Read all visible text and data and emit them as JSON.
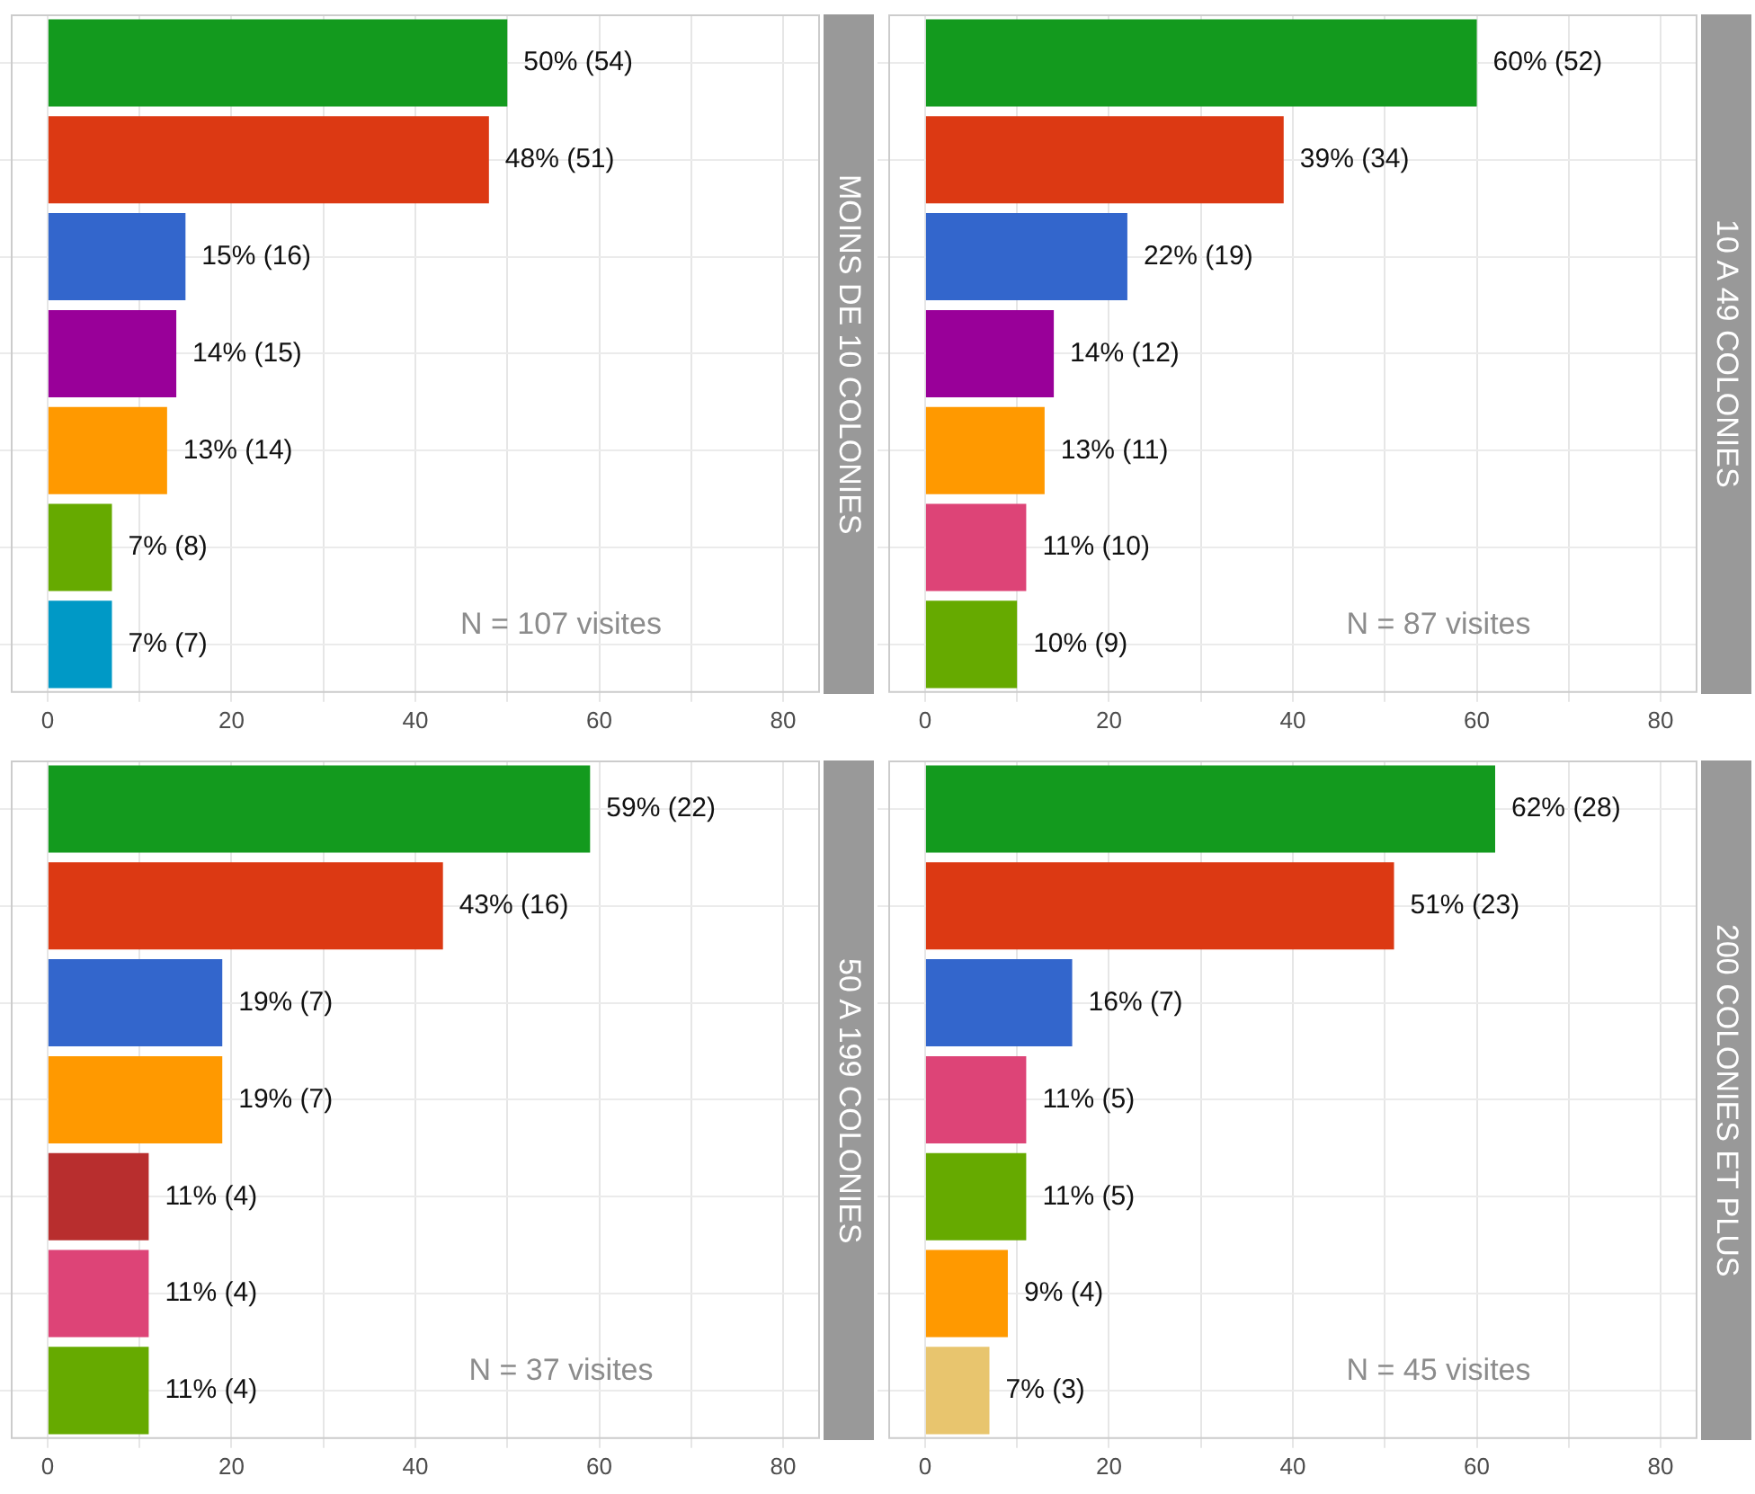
{
  "chart_data": [
    {
      "type": "bar",
      "orientation": "horizontal",
      "title": "MOINS DE 10 COLONIES",
      "categories": [
        null,
        null,
        null,
        null,
        null,
        null,
        null
      ],
      "values": [
        50,
        48,
        15,
        14,
        13,
        7,
        7
      ],
      "colors": [
        "#139a1e",
        "#dc3913",
        "#3366cc",
        "#990099",
        "#ff9900",
        "#66aa00",
        "#0099c6"
      ],
      "value_labels": [
        "50% (54)",
        "48% (51)",
        "15% (16)",
        "14% (15)",
        "13% (14)",
        "7% (8)",
        "7% (7)"
      ],
      "annotations": [
        "N = 107 visites"
      ],
      "xlim": [
        -4,
        84
      ],
      "xticks": [
        0,
        {
          "value": 10,
          "label": null
        },
        20,
        {
          "value": 30,
          "label": null
        },
        40,
        {
          "value": 50,
          "label": null
        },
        60,
        {
          "value": 70,
          "label": null
        },
        80
      ],
      "grid": true,
      "tick_labels": "x"
    },
    {
      "type": "bar",
      "orientation": "horizontal",
      "title": "10 A 49 COLONIES",
      "categories": [
        null,
        null,
        null,
        null,
        null,
        null,
        null
      ],
      "values": [
        60,
        39,
        22,
        14,
        13,
        11,
        10
      ],
      "colors": [
        "#139a1e",
        "#dc3913",
        "#3366cc",
        "#990099",
        "#ff9900",
        "#dd4477",
        "#66aa00"
      ],
      "value_labels": [
        "60% (52)",
        "39% (34)",
        "22% (19)",
        "14% (12)",
        "13% (11)",
        "11% (10)",
        "10% (9)"
      ],
      "annotations": [
        "N = 87 visites"
      ],
      "xlim": [
        -4,
        84
      ],
      "xticks": [
        0,
        {
          "value": 10,
          "label": null
        },
        20,
        {
          "value": 30,
          "label": null
        },
        40,
        {
          "value": 50,
          "label": null
        },
        60,
        {
          "value": 70,
          "label": null
        },
        80
      ],
      "grid": true,
      "tick_labels": "x"
    },
    {
      "type": "bar",
      "orientation": "horizontal",
      "title": "50 A 199 COLONIES",
      "categories": [
        null,
        null,
        null,
        null,
        null,
        null,
        null
      ],
      "values": [
        59,
        43,
        19,
        19,
        11,
        11,
        11
      ],
      "colors": [
        "#139a1e",
        "#dc3913",
        "#3366cc",
        "#ff9900",
        "#b82e2e",
        "#dd4477",
        "#66aa00"
      ],
      "value_labels": [
        "59% (22)",
        "43% (16)",
        "19% (7)",
        "19% (7)",
        "11% (4)",
        "11% (4)",
        "11% (4)"
      ],
      "annotations": [
        "N = 37 visites"
      ],
      "xlim": [
        -4,
        84
      ],
      "xticks": [
        0,
        {
          "value": 10,
          "label": null
        },
        20,
        {
          "value": 30,
          "label": null
        },
        40,
        {
          "value": 50,
          "label": null
        },
        60,
        {
          "value": 70,
          "label": null
        },
        80
      ],
      "grid": true,
      "tick_labels": "x"
    },
    {
      "type": "bar",
      "orientation": "horizontal",
      "title": "200 COLONIES ET PLUS",
      "categories": [
        null,
        null,
        null,
        null,
        null,
        null,
        null
      ],
      "values": [
        62,
        51,
        16,
        11,
        11,
        9,
        7
      ],
      "colors": [
        "#139a1e",
        "#dc3913",
        "#3366cc",
        "#dd4477",
        "#66aa00",
        "#ff9900",
        "#e8c56e"
      ],
      "value_labels": [
        "62% (28)",
        "51% (23)",
        "16% (7)",
        "11% (5)",
        "11% (5)",
        "9% (4)",
        "7% (3)"
      ],
      "annotations": [
        "N = 45 visites"
      ],
      "xlim": [
        -4,
        84
      ],
      "xticks": [
        0,
        {
          "value": 10,
          "label": null
        },
        20,
        {
          "value": 30,
          "label": null
        },
        40,
        {
          "value": 50,
          "label": null
        },
        60,
        {
          "value": 70,
          "label": null
        },
        80
      ],
      "grid": true,
      "tick_labels": "x"
    }
  ]
}
